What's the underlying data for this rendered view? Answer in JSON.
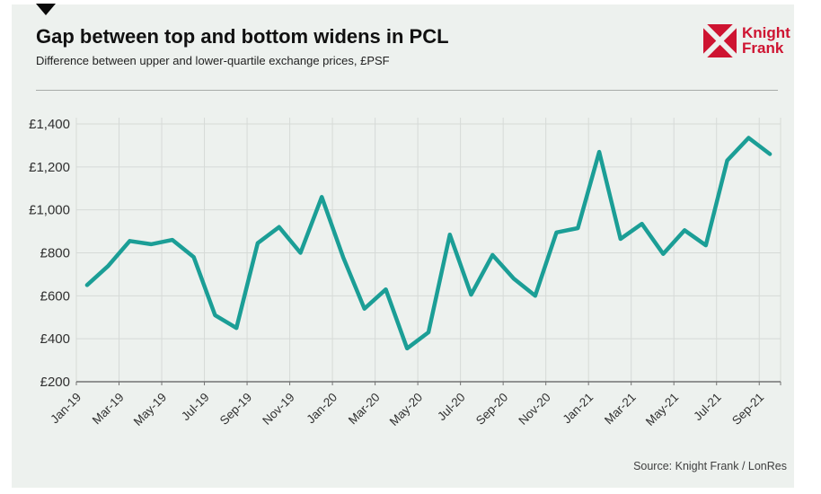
{
  "header": {
    "title": "Gap between top and bottom widens in PCL",
    "subtitle": "Difference between upper and lower-quartile exchange prices, £PSF",
    "logo": {
      "line1": "Knight",
      "line2": "Frank",
      "color": "#ce1431"
    }
  },
  "footer": {
    "source": "Source: Knight Frank / LonRes"
  },
  "colors": {
    "line": "#1b9e96",
    "card_background": "#edf1ee",
    "gridline": "#d6dad7",
    "axis": "#737373",
    "brand_red": "#ce1431"
  },
  "chart_data": {
    "type": "line",
    "title": "Gap between top and bottom widens in PCL",
    "subtitle": "Difference between upper and lower-quartile exchange prices, £PSF",
    "xlabel": "",
    "ylabel": "£PSF",
    "x": [
      "Jan-19",
      "Feb-19",
      "Mar-19",
      "Apr-19",
      "May-19",
      "Jun-19",
      "Jul-19",
      "Aug-19",
      "Sep-19",
      "Oct-19",
      "Nov-19",
      "Dec-19",
      "Jan-20",
      "Feb-20",
      "Mar-20",
      "Apr-20",
      "May-20",
      "Jun-20",
      "Jul-20",
      "Aug-20",
      "Sep-20",
      "Oct-20",
      "Nov-20",
      "Dec-20",
      "Jan-21",
      "Feb-21",
      "Mar-21",
      "Apr-21",
      "May-21",
      "Jun-21",
      "Jul-21",
      "Aug-21",
      "Sep-21"
    ],
    "values": [
      650,
      740,
      855,
      840,
      860,
      780,
      510,
      450,
      845,
      920,
      800,
      1060,
      780,
      540,
      630,
      355,
      430,
      885,
      605,
      790,
      680,
      600,
      895,
      915,
      1270,
      865,
      935,
      795,
      905,
      835,
      1230,
      1335,
      1260
    ],
    "x_tick_labels": [
      "Jan-19",
      "Mar-19",
      "May-19",
      "Jul-19",
      "Sep-19",
      "Nov-19",
      "Jan-20",
      "Mar-20",
      "May-20",
      "Jul-20",
      "Sep-20",
      "Nov-20",
      "Jan-21",
      "Mar-21",
      "May-21",
      "Jul-21",
      "Sep-21"
    ],
    "y_ticks": [
      200,
      400,
      600,
      800,
      1000,
      1200,
      1400
    ],
    "y_tick_labels": [
      "£200",
      "£400",
      "£600",
      "£800",
      "£1,000",
      "£1,200",
      "£1,400"
    ],
    "ylim": [
      200,
      1400
    ],
    "grid": true,
    "legend": "none",
    "line_color": "#1b9e96",
    "source": "Source: Knight Frank / LonRes"
  }
}
